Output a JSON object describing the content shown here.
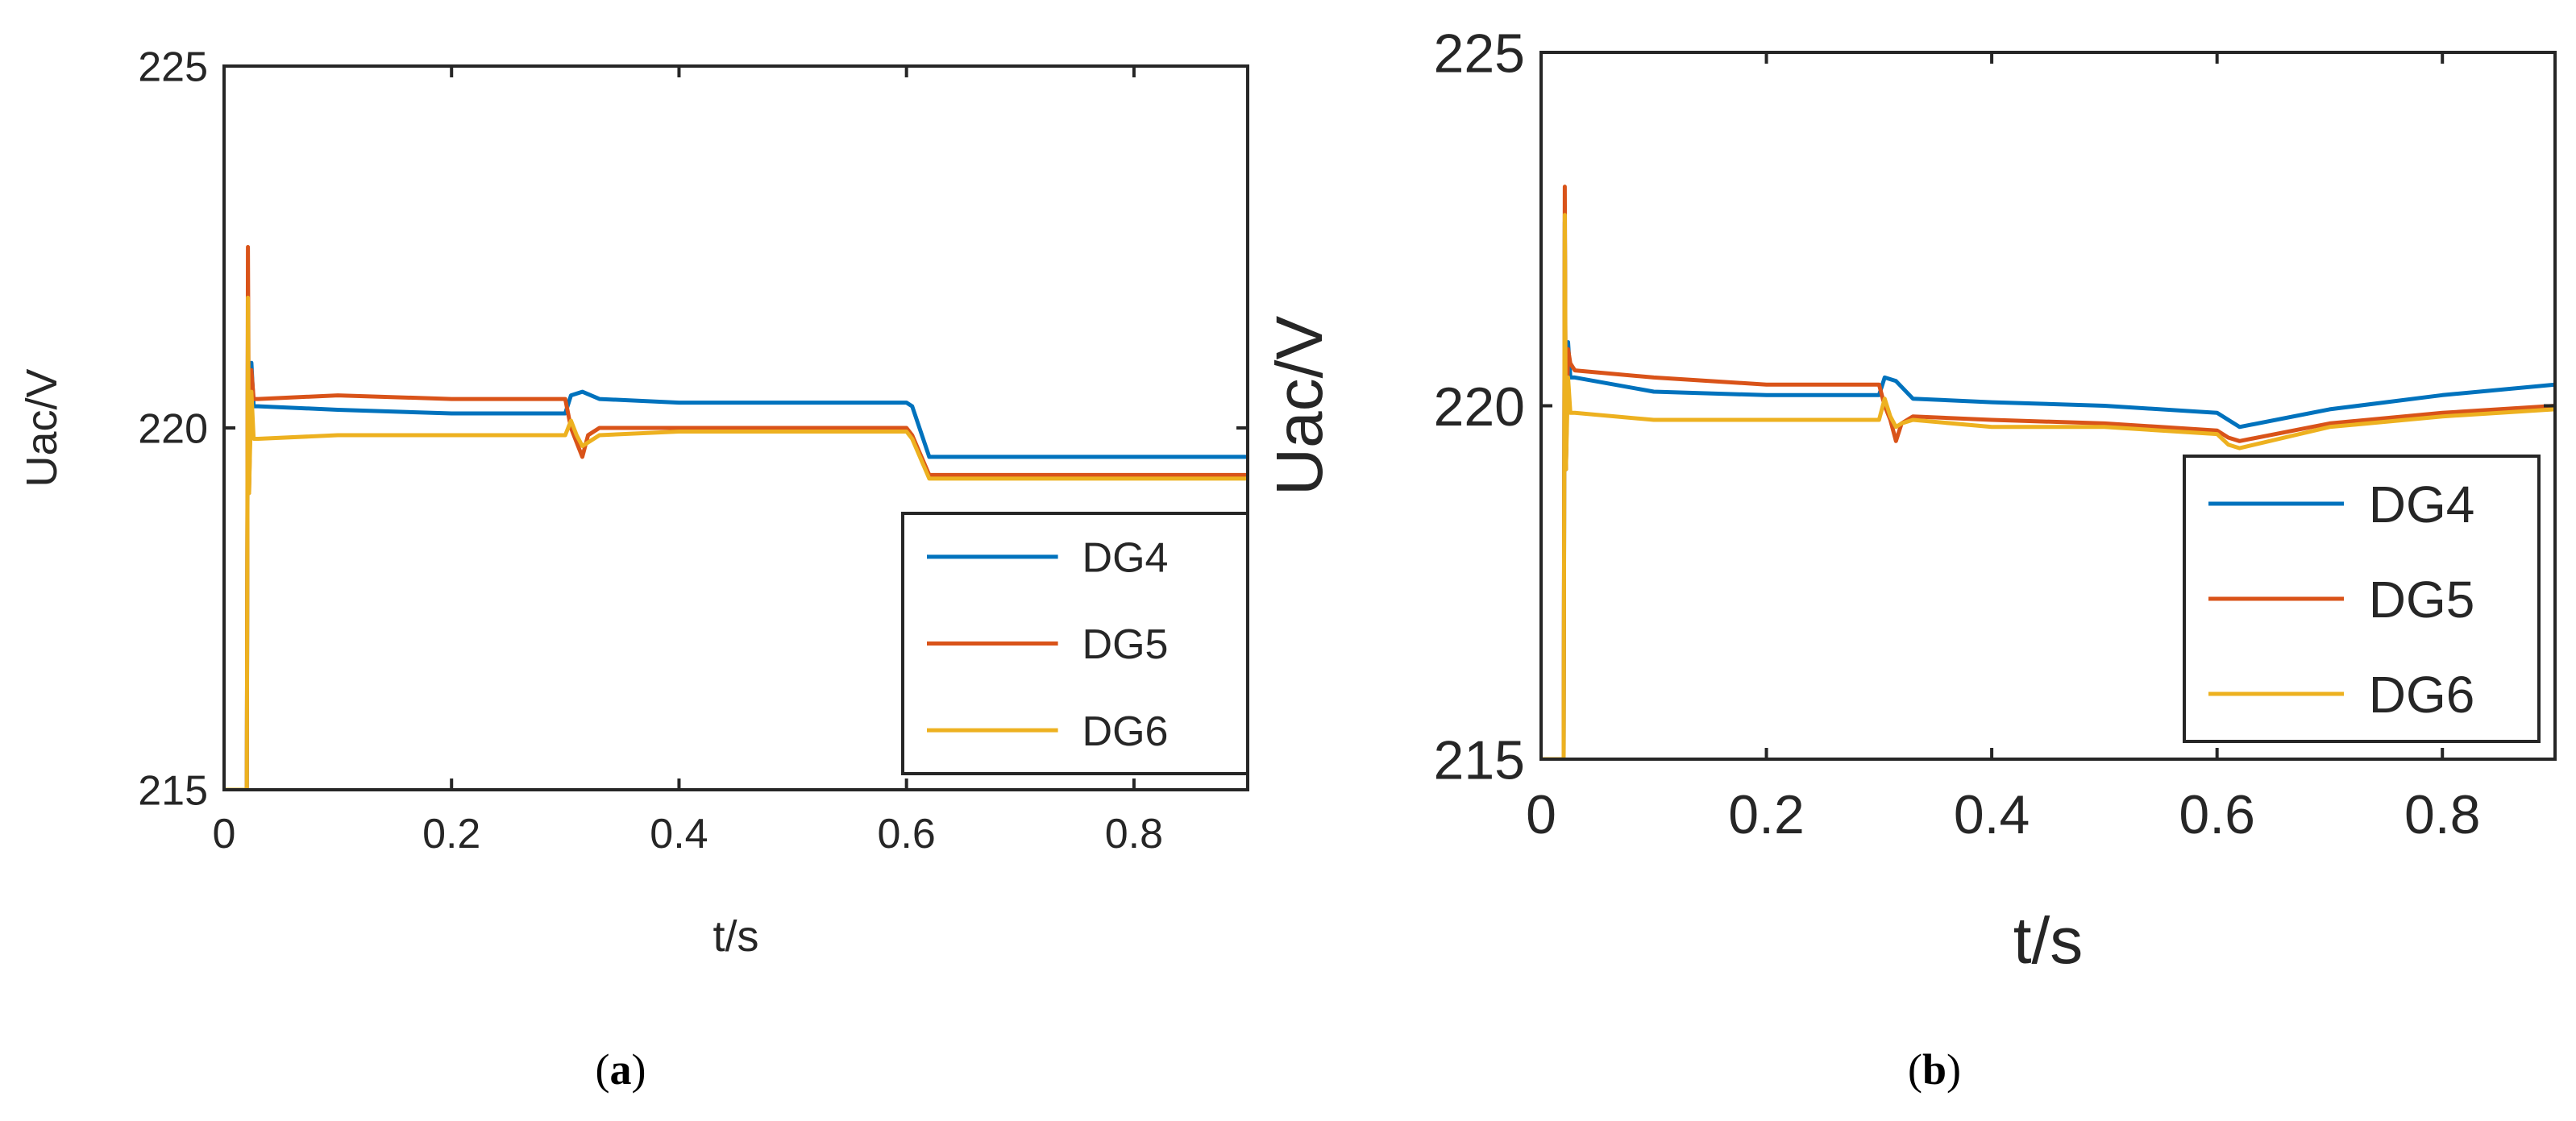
{
  "chart_data": [
    {
      "type": "line",
      "panel_label": "a",
      "xlabel": "t/s",
      "ylabel": "Uac/V",
      "xlim": [
        0,
        0.9
      ],
      "ylim": [
        215,
        225
      ],
      "xticks": [
        0,
        0.2,
        0.4,
        0.6,
        0.8
      ],
      "xtick_labels": [
        "0",
        "0.2",
        "0.4",
        "0.6",
        "0.8"
      ],
      "yticks": [
        215,
        220,
        225
      ],
      "ytick_labels": [
        "215",
        "220",
        "225"
      ],
      "legend_position": "bottom-right",
      "series": [
        {
          "name": "DG4",
          "color": "#0072bd",
          "x": [
            0,
            0.02,
            0.021,
            0.022,
            0.024,
            0.026,
            0.03,
            0.1,
            0.2,
            0.3,
            0.305,
            0.315,
            0.33,
            0.4,
            0.5,
            0.6,
            0.605,
            0.62,
            0.7,
            0.8,
            0.9
          ],
          "y": [
            215,
            215,
            221.6,
            219.2,
            220.9,
            220.3,
            220.3,
            220.25,
            220.2,
            220.2,
            220.45,
            220.5,
            220.4,
            220.35,
            220.35,
            220.35,
            220.3,
            219.6,
            219.6,
            219.6,
            219.6
          ]
        },
        {
          "name": "DG5",
          "color": "#d95319",
          "x": [
            0,
            0.02,
            0.021,
            0.022,
            0.024,
            0.026,
            0.03,
            0.1,
            0.2,
            0.3,
            0.305,
            0.31,
            0.315,
            0.32,
            0.33,
            0.4,
            0.5,
            0.6,
            0.605,
            0.62,
            0.7,
            0.8,
            0.9
          ],
          "y": [
            215,
            215,
            222.5,
            219.1,
            220.8,
            220.4,
            220.4,
            220.45,
            220.4,
            220.4,
            220.0,
            219.8,
            219.6,
            219.9,
            220.0,
            220.0,
            220.0,
            220.0,
            219.9,
            219.35,
            219.35,
            219.35,
            219.35
          ]
        },
        {
          "name": "DG6",
          "color": "#edb120",
          "x": [
            0,
            0.02,
            0.021,
            0.022,
            0.024,
            0.026,
            0.03,
            0.1,
            0.2,
            0.3,
            0.305,
            0.31,
            0.315,
            0.32,
            0.33,
            0.4,
            0.5,
            0.6,
            0.605,
            0.62,
            0.7,
            0.8,
            0.9
          ],
          "y": [
            215,
            215,
            221.8,
            219.1,
            220.5,
            219.85,
            219.85,
            219.9,
            219.9,
            219.9,
            220.1,
            219.9,
            219.75,
            219.8,
            219.9,
            219.95,
            219.95,
            219.95,
            219.85,
            219.3,
            219.3,
            219.3,
            219.3
          ]
        }
      ]
    },
    {
      "type": "line",
      "panel_label": "b",
      "xlabel": "t/s",
      "ylabel": "Uac/V",
      "xlim": [
        0,
        0.9
      ],
      "ylim": [
        215,
        225
      ],
      "xticks": [
        0,
        0.2,
        0.4,
        0.6,
        0.8
      ],
      "xtick_labels": [
        "0",
        "0.2",
        "0.4",
        "0.6",
        "0.8"
      ],
      "yticks": [
        215,
        220,
        225
      ],
      "ytick_labels": [
        "215",
        "220",
        "225"
      ],
      "legend_position": "bottom-right",
      "series": [
        {
          "name": "DG4",
          "color": "#0072bd",
          "x": [
            0,
            0.02,
            0.021,
            0.022,
            0.024,
            0.026,
            0.03,
            0.1,
            0.2,
            0.3,
            0.305,
            0.315,
            0.33,
            0.4,
            0.5,
            0.6,
            0.61,
            0.62,
            0.7,
            0.8,
            0.9
          ],
          "y": [
            215,
            215,
            222.6,
            219.1,
            220.9,
            220.4,
            220.4,
            220.2,
            220.15,
            220.15,
            220.4,
            220.35,
            220.1,
            220.05,
            220.0,
            219.9,
            219.8,
            219.7,
            219.95,
            220.15,
            220.3
          ]
        },
        {
          "name": "DG5",
          "color": "#d95319",
          "x": [
            0,
            0.02,
            0.021,
            0.022,
            0.024,
            0.026,
            0.03,
            0.1,
            0.2,
            0.3,
            0.305,
            0.31,
            0.315,
            0.32,
            0.33,
            0.4,
            0.5,
            0.6,
            0.61,
            0.62,
            0.7,
            0.8,
            0.9
          ],
          "y": [
            215,
            215,
            223.1,
            219.1,
            220.8,
            220.6,
            220.5,
            220.4,
            220.3,
            220.3,
            220.0,
            219.8,
            219.5,
            219.75,
            219.85,
            219.8,
            219.75,
            219.65,
            219.55,
            219.5,
            219.75,
            219.9,
            220.0
          ]
        },
        {
          "name": "DG6",
          "color": "#edb120",
          "x": [
            0,
            0.02,
            0.021,
            0.022,
            0.024,
            0.026,
            0.03,
            0.1,
            0.2,
            0.3,
            0.305,
            0.31,
            0.315,
            0.32,
            0.33,
            0.4,
            0.5,
            0.6,
            0.61,
            0.62,
            0.7,
            0.8,
            0.9
          ],
          "y": [
            215,
            215,
            222.7,
            219.1,
            220.4,
            219.9,
            219.9,
            219.8,
            219.8,
            219.8,
            220.1,
            219.85,
            219.7,
            219.75,
            219.8,
            219.7,
            219.7,
            219.6,
            219.45,
            219.4,
            219.7,
            219.85,
            219.95
          ]
        }
      ]
    }
  ]
}
